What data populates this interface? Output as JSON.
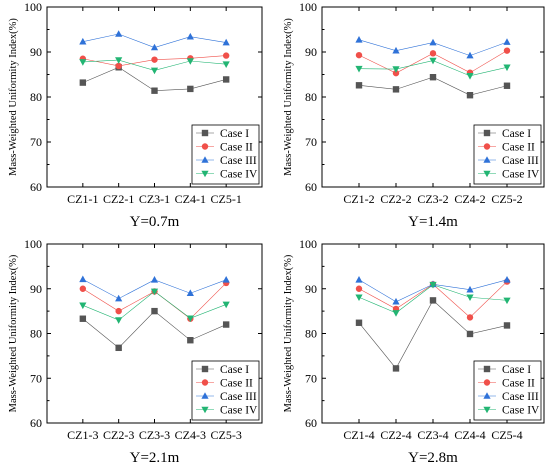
{
  "legend_position": "bottom-right",
  "series_styles": [
    {
      "color": "#555555",
      "marker": "square"
    },
    {
      "color": "#f0504a",
      "marker": "circle"
    },
    {
      "color": "#2f72d8",
      "marker": "triangle-up"
    },
    {
      "color": "#22b573",
      "marker": "triangle-down"
    }
  ],
  "chart_data": [
    {
      "type": "line",
      "title": "Y=0.7m",
      "xlabel": "",
      "ylabel": "Mass-Weighted Uniformity Index(%)",
      "ylim": [
        60,
        100
      ],
      "yticks": [
        60,
        70,
        80,
        90,
        100
      ],
      "categories": [
        "CZ1-1",
        "CZ2-1",
        "CZ3-1",
        "CZ4-1",
        "CZ5-1"
      ],
      "series": [
        {
          "name": "Case I",
          "values": [
            83.2,
            86.6,
            81.4,
            81.8,
            83.9
          ]
        },
        {
          "name": "Case II",
          "values": [
            88.5,
            86.9,
            88.3,
            88.6,
            89.2
          ]
        },
        {
          "name": "Case III",
          "values": [
            92.3,
            94.0,
            91.0,
            93.4,
            92.1
          ]
        },
        {
          "name": "Case IV",
          "values": [
            87.8,
            88.2,
            85.9,
            88.0,
            87.3
          ]
        }
      ]
    },
    {
      "type": "line",
      "title": "Y=1.4m",
      "xlabel": "",
      "ylabel": "Mass-Weighted Uniformity Index(%)",
      "ylim": [
        60,
        100
      ],
      "yticks": [
        60,
        70,
        80,
        90,
        100
      ],
      "categories": [
        "CZ1-2",
        "CZ2-2",
        "CZ3-2",
        "CZ4-2",
        "CZ5-2"
      ],
      "series": [
        {
          "name": "Case I",
          "values": [
            82.6,
            81.7,
            84.4,
            80.4,
            82.5
          ]
        },
        {
          "name": "Case II",
          "values": [
            89.3,
            85.3,
            89.7,
            85.4,
            90.3
          ]
        },
        {
          "name": "Case III",
          "values": [
            92.7,
            90.3,
            92.1,
            89.2,
            92.2
          ]
        },
        {
          "name": "Case IV",
          "values": [
            86.3,
            86.2,
            88.1,
            84.7,
            86.6
          ]
        }
      ]
    },
    {
      "type": "line",
      "title": "Y=2.1m",
      "xlabel": "",
      "ylabel": "Mass-Weighted Uniformity Index(%)",
      "ylim": [
        60,
        100
      ],
      "yticks": [
        60,
        70,
        80,
        90,
        100
      ],
      "categories": [
        "CZ1-3",
        "CZ2-3",
        "CZ3-3",
        "CZ4-3",
        "CZ5-3"
      ],
      "series": [
        {
          "name": "Case I",
          "values": [
            83.3,
            76.8,
            85.0,
            78.5,
            82.0
          ]
        },
        {
          "name": "Case II",
          "values": [
            90.0,
            85.0,
            89.4,
            83.3,
            91.3
          ]
        },
        {
          "name": "Case III",
          "values": [
            92.1,
            87.8,
            92.0,
            89.0,
            92.0
          ]
        },
        {
          "name": "Case IV",
          "values": [
            86.3,
            83.0,
            89.4,
            83.4,
            86.5
          ]
        }
      ]
    },
    {
      "type": "line",
      "title": "Y=2.8m",
      "xlabel": "",
      "ylabel": "Mass-Weighted Uniformity Index(%)",
      "ylim": [
        60,
        100
      ],
      "yticks": [
        60,
        70,
        80,
        90,
        100
      ],
      "categories": [
        "CZ1-4",
        "CZ2-4",
        "CZ3-4",
        "CZ4-4",
        "CZ5-4"
      ],
      "series": [
        {
          "name": "Case I",
          "values": [
            82.4,
            72.2,
            87.4,
            79.9,
            81.8
          ]
        },
        {
          "name": "Case II",
          "values": [
            90.0,
            85.5,
            91.0,
            83.6,
            91.6
          ]
        },
        {
          "name": "Case III",
          "values": [
            92.0,
            87.1,
            91.0,
            89.8,
            92.0
          ]
        },
        {
          "name": "Case IV",
          "values": [
            88.1,
            84.6,
            90.9,
            88.1,
            87.4
          ]
        }
      ]
    }
  ]
}
